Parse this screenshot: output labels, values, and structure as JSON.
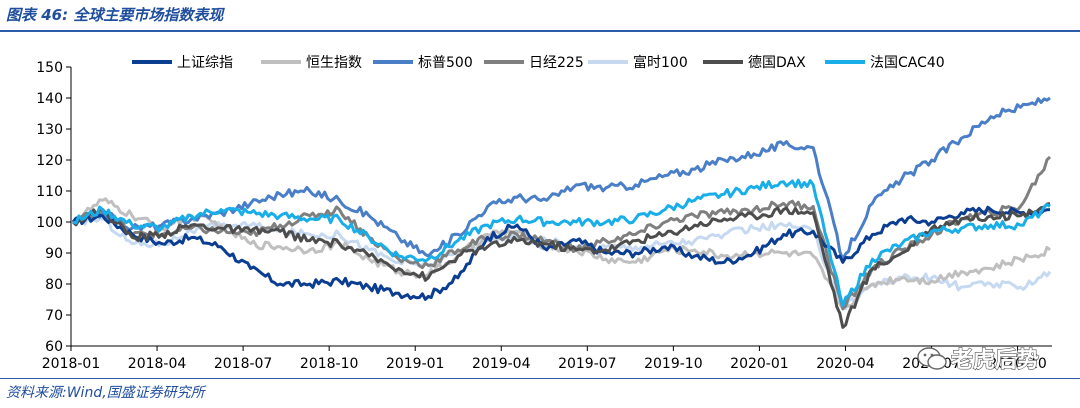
{
  "title": "图表 46:  全球主要市场指数表现",
  "source": "资料来源:Wind,国盛证券研究所",
  "watermark": "老虎后势",
  "chart_data": {
    "type": "line",
    "title": "",
    "xlabel": "",
    "ylabel": "",
    "ylim": [
      60,
      150
    ],
    "yticks": [
      "60",
      "70",
      "80",
      "90",
      "100",
      "110",
      "120",
      "130",
      "140",
      "150"
    ],
    "xticks": [
      "2018-01",
      "2018-04",
      "2018-07",
      "2018-10",
      "2019-01",
      "2019-04",
      "2019-07",
      "2019-10",
      "2020-01",
      "2020-04",
      "2020-07",
      "2020-10"
    ],
    "series": [
      {
        "name": "上证综指",
        "color": "#0b3d91",
        "values": [
          100,
          102,
          96,
          93,
          95,
          92,
          85,
          80,
          80,
          81,
          79,
          77,
          76,
          82,
          95,
          99,
          91,
          94,
          90,
          90,
          92,
          89,
          87,
          90,
          96,
          97,
          87,
          96,
          101,
          100,
          103,
          104,
          103,
          104
        ]
      },
      {
        "name": "恒生指数",
        "color": "#bfbfbf",
        "values": [
          100,
          107,
          102,
          98,
          102,
          99,
          93,
          92,
          91,
          93,
          88,
          84,
          83,
          89,
          96,
          97,
          92,
          91,
          88,
          87,
          91,
          91,
          89,
          90,
          90,
          89,
          72,
          80,
          82,
          81,
          84,
          85,
          88,
          91
        ]
      },
      {
        "name": "标普500",
        "color": "#4a7fc8",
        "values": [
          100,
          103,
          98,
          99,
          101,
          103,
          106,
          109,
          110,
          107,
          102,
          95,
          89,
          96,
          105,
          108,
          107,
          112,
          111,
          112,
          115,
          117,
          120,
          122,
          125,
          124,
          88,
          106,
          114,
          120,
          127,
          134,
          137,
          140
        ]
      },
      {
        "name": "日经225",
        "color": "#7f7f7f",
        "values": [
          100,
          104,
          96,
          96,
          98,
          97,
          96,
          99,
          102,
          104,
          95,
          88,
          86,
          91,
          95,
          96,
          94,
          91,
          94,
          96,
          100,
          102,
          103,
          104,
          106,
          105,
          72,
          85,
          91,
          96,
          101,
          103,
          105,
          121
        ]
      },
      {
        "name": "富时100",
        "color": "#c6d9f1",
        "values": [
          100,
          101,
          93,
          93,
          97,
          99,
          99,
          97,
          96,
          96,
          91,
          87,
          86,
          90,
          94,
          95,
          94,
          92,
          92,
          92,
          93,
          94,
          96,
          98,
          99,
          97,
          72,
          80,
          82,
          82,
          79,
          80,
          79,
          84
        ]
      },
      {
        "name": "德国DAX",
        "color": "#4d4d4d",
        "values": [
          100,
          104,
          95,
          96,
          99,
          98,
          97,
          97,
          94,
          93,
          89,
          85,
          82,
          89,
          92,
          94,
          93,
          91,
          91,
          94,
          96,
          99,
          101,
          102,
          104,
          103,
          66,
          85,
          90,
          98,
          101,
          102,
          102,
          106
        ]
      },
      {
        "name": "法国CAC40",
        "color": "#19aee8",
        "values": [
          100,
          104,
          99,
          98,
          102,
          104,
          103,
          102,
          101,
          101,
          95,
          89,
          88,
          94,
          99,
          101,
          100,
          100,
          100,
          101,
          104,
          107,
          109,
          111,
          113,
          112,
          73,
          88,
          93,
          97,
          98,
          99,
          99,
          105
        ]
      }
    ]
  }
}
